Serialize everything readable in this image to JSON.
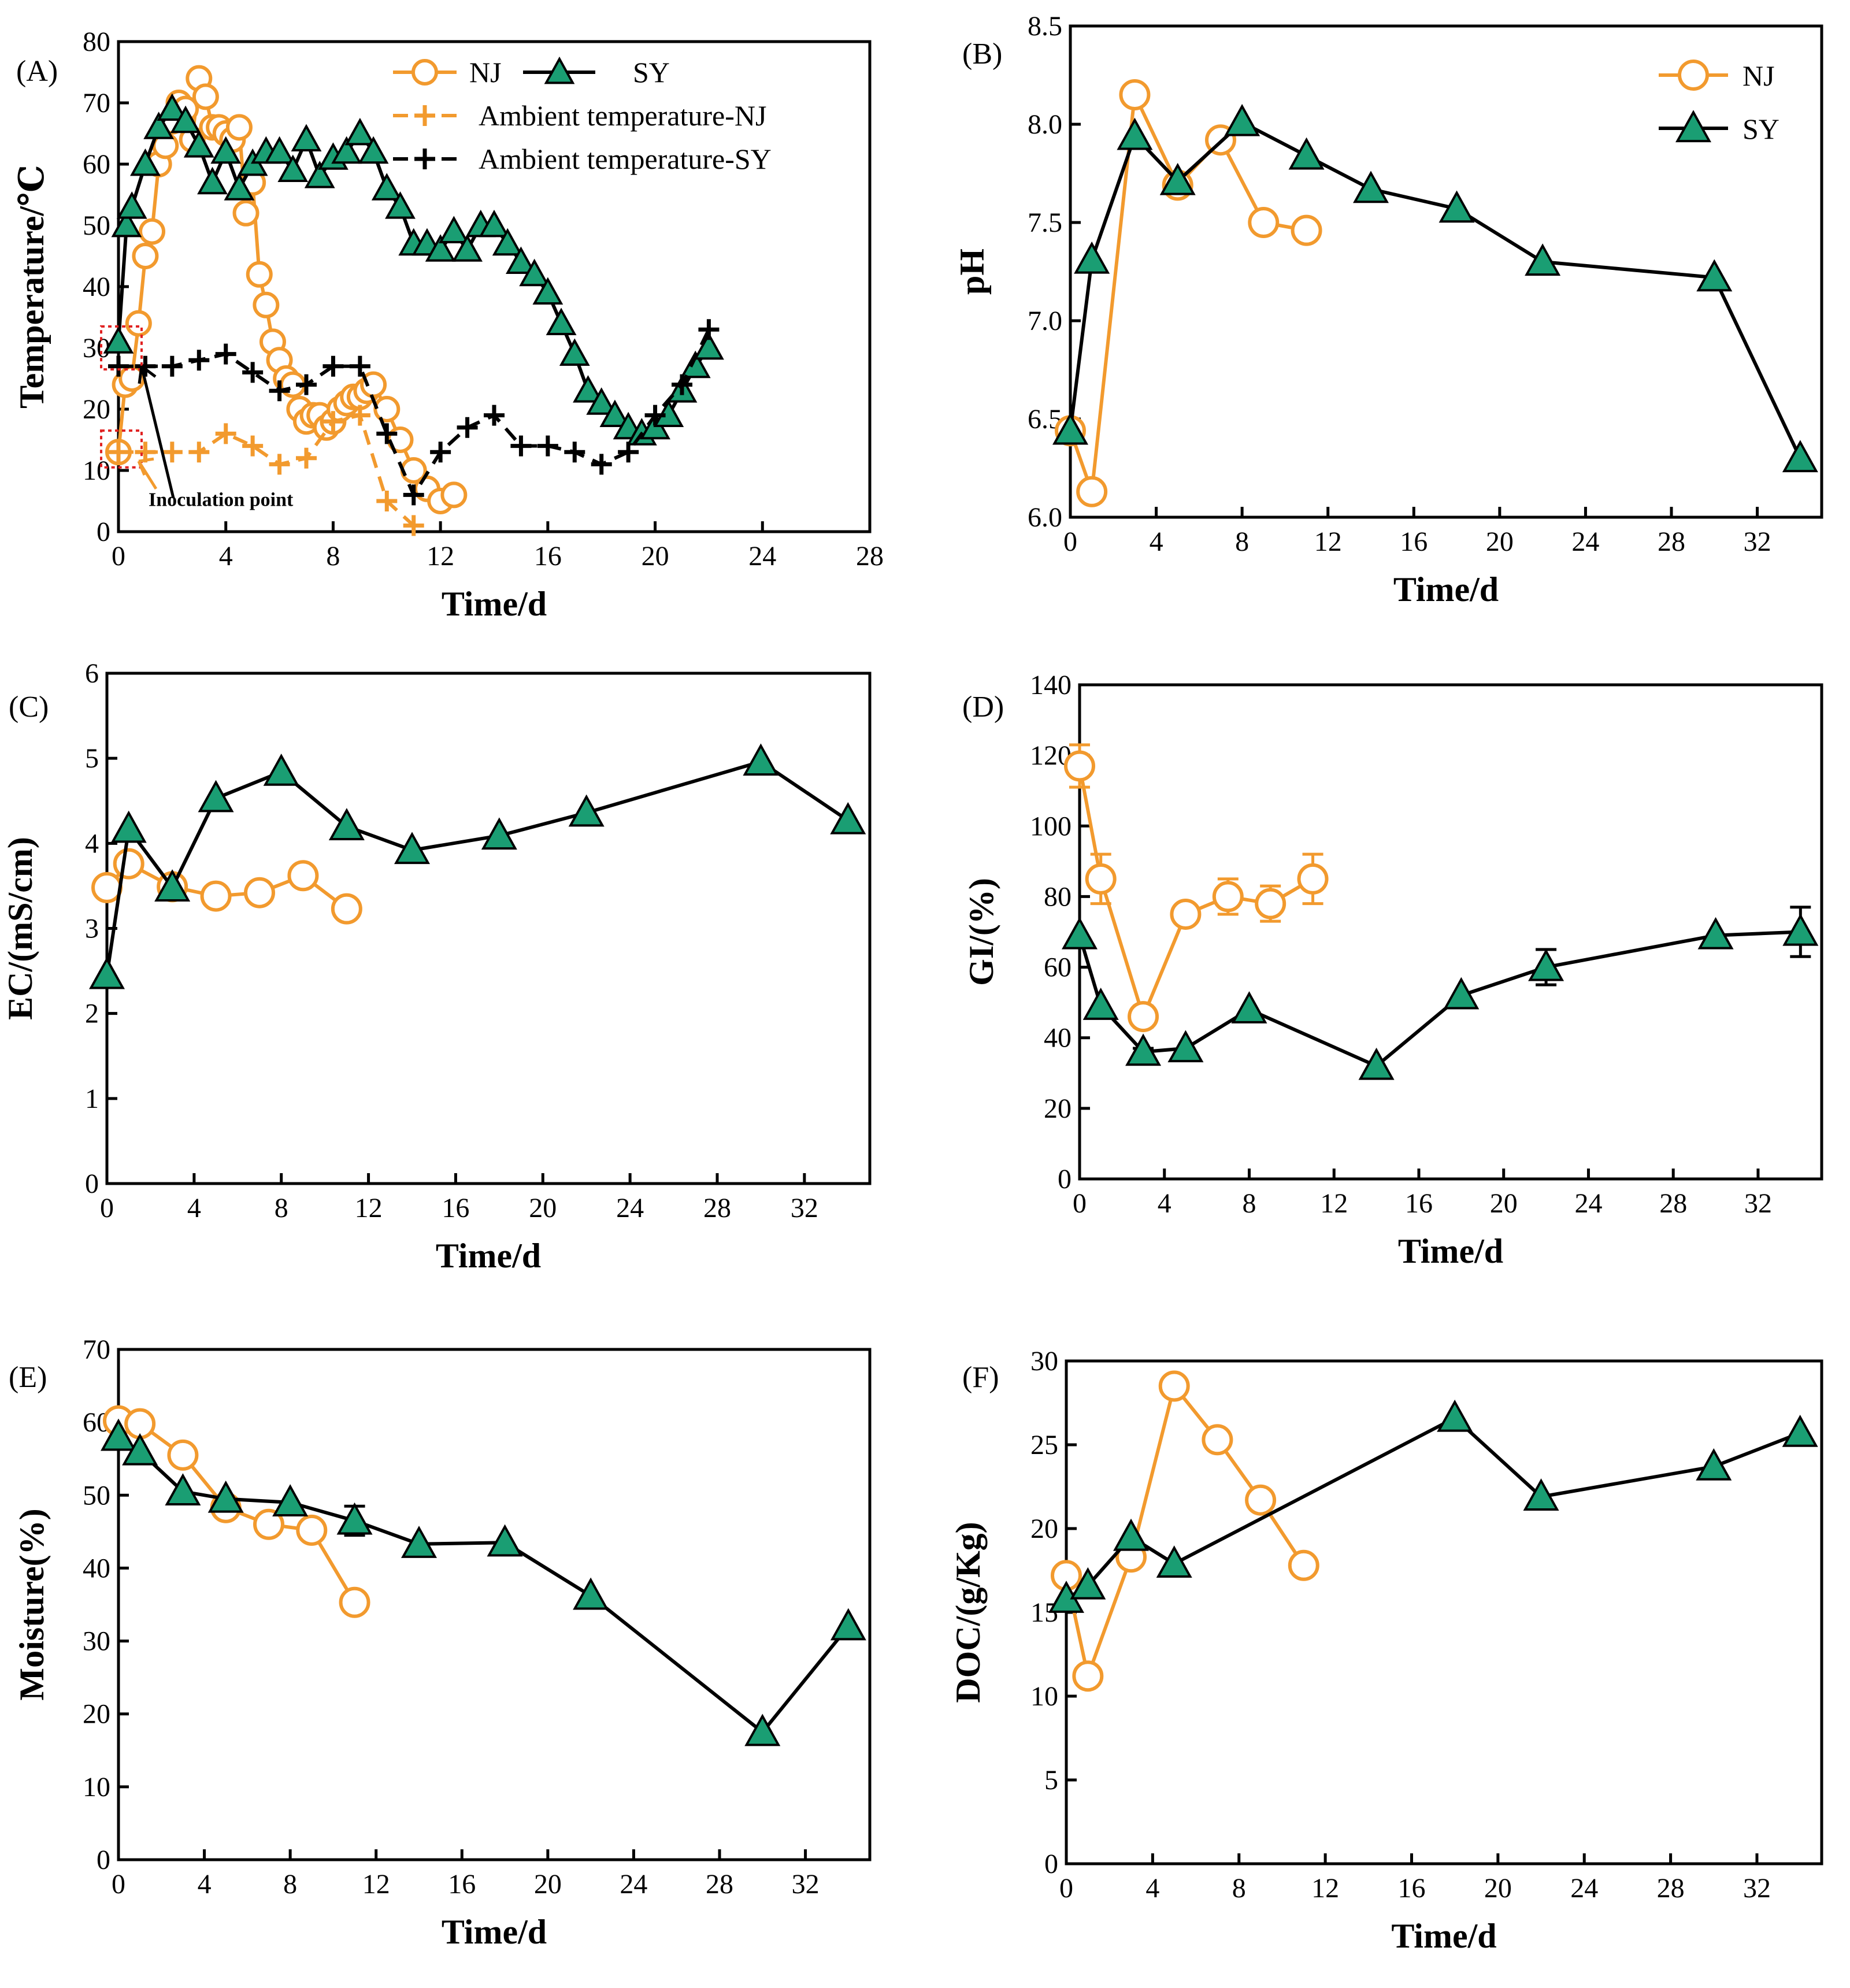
{
  "chart_data": [
    {
      "type": "line",
      "panel": "(A)",
      "xlabel": "Time/d",
      "ylabel": "Temperature/℃",
      "xlim": [
        0,
        28
      ],
      "ylim": [
        0,
        80
      ],
      "xticks": [
        0,
        4,
        8,
        12,
        16,
        20,
        24,
        28
      ],
      "yticks": [
        0,
        10,
        20,
        30,
        40,
        50,
        60,
        70,
        80
      ],
      "legend_placement": "top-right",
      "annotation": "Inoculation point",
      "series": [
        {
          "name": "NJ",
          "color": "#f29a2e",
          "marker": "circle",
          "line": "solid",
          "x": [
            0,
            0.25,
            0.5,
            0.75,
            1.0,
            1.25,
            1.5,
            1.75,
            2.0,
            2.25,
            2.5,
            2.75,
            3.0,
            3.25,
            3.5,
            3.75,
            4.0,
            4.25,
            4.5,
            4.75,
            5.0,
            5.25,
            5.5,
            5.75,
            6.0,
            6.25,
            6.5,
            6.75,
            7.0,
            7.25,
            7.5,
            7.75,
            8.0,
            8.25,
            8.5,
            8.75,
            9.0,
            9.25,
            9.5,
            10.0,
            10.5,
            11.0,
            11.5,
            12.0,
            12.5
          ],
          "y": [
            13,
            24,
            25,
            34,
            45,
            49,
            60,
            63,
            67,
            70,
            69,
            64,
            74,
            71,
            66,
            66,
            65,
            64,
            66,
            52,
            57,
            42,
            37,
            31,
            28,
            25,
            24,
            20,
            18,
            19,
            19,
            17,
            18,
            20,
            21,
            22,
            22,
            23,
            24,
            20,
            15,
            10,
            7,
            5,
            6
          ]
        },
        {
          "name": "SY",
          "color": "#1a9e73",
          "marker": "triangle",
          "line": "solid",
          "x": [
            0,
            0.3,
            0.5,
            1.0,
            1.5,
            2.0,
            2.5,
            3.0,
            3.5,
            4.0,
            4.5,
            5.0,
            5.5,
            6.0,
            6.5,
            7.0,
            7.5,
            8.0,
            8.5,
            9.0,
            9.5,
            10.0,
            10.5,
            11.0,
            11.5,
            12.0,
            12.5,
            13.0,
            13.5,
            14.0,
            14.5,
            15.0,
            15.5,
            16.0,
            16.5,
            17.0,
            17.5,
            18.0,
            18.5,
            19.0,
            19.5,
            20.0,
            20.5,
            21.0,
            21.5,
            22.0
          ],
          "y": [
            31,
            50,
            53,
            60,
            66,
            69,
            67,
            63,
            57,
            62,
            56,
            60,
            62,
            62,
            59,
            64,
            58,
            61,
            62,
            65,
            62,
            56,
            53,
            47,
            47,
            46,
            49,
            46,
            50,
            50,
            47,
            44,
            42,
            39,
            34,
            29,
            23,
            21,
            19,
            17,
            16,
            17,
            19,
            23,
            27,
            30
          ]
        },
        {
          "name": "Ambient temperature-NJ",
          "color": "#f29a2e",
          "marker": "plus",
          "line": "dashed",
          "x": [
            0,
            1,
            2,
            3,
            4,
            5,
            6,
            7,
            8,
            9,
            10,
            11
          ],
          "y": [
            13,
            13,
            13,
            13,
            16,
            14,
            11,
            12,
            18,
            19,
            5,
            1
          ]
        },
        {
          "name": "Ambient temperature-SY",
          "color": "#000000",
          "marker": "plus",
          "line": "dashed",
          "x": [
            0,
            1,
            2,
            3,
            4,
            5,
            6,
            7,
            8,
            9,
            10,
            11,
            12,
            13,
            14,
            15,
            16,
            17,
            18,
            19,
            20,
            21,
            22
          ],
          "y": [
            27,
            27,
            27,
            28,
            29,
            26,
            23,
            24,
            27,
            27,
            16,
            6,
            13,
            17,
            19,
            14,
            14,
            13,
            11,
            13,
            19,
            24,
            33
          ]
        }
      ]
    },
    {
      "type": "line",
      "panel": "(B)",
      "xlabel": "Time/d",
      "ylabel": "pH",
      "xlim": [
        0,
        35
      ],
      "ylim": [
        6.0,
        8.5
      ],
      "xticks": [
        0,
        4,
        8,
        12,
        16,
        20,
        24,
        28,
        32
      ],
      "yticks": [
        "6.0",
        "6.5",
        "7.0",
        "7.5",
        "8.0",
        "8.5"
      ],
      "legend_placement": "top-right",
      "series": [
        {
          "name": "NJ",
          "color": "#f29a2e",
          "marker": "circle",
          "x": [
            0,
            1,
            3,
            5,
            7,
            9,
            11
          ],
          "y": [
            6.44,
            6.13,
            8.15,
            7.69,
            7.92,
            7.5,
            7.46
          ]
        },
        {
          "name": "SY",
          "color": "#1a9e73",
          "marker": "triangle",
          "x": [
            0,
            1,
            3,
            5,
            8,
            11,
            14,
            18,
            22,
            30,
            34
          ],
          "y": [
            6.44,
            7.31,
            7.94,
            7.71,
            8.01,
            7.84,
            7.67,
            7.57,
            7.3,
            7.22,
            6.3
          ]
        }
      ]
    },
    {
      "type": "line",
      "panel": "(C)",
      "xlabel": "Time/d",
      "ylabel": "EC/(mS/cm)",
      "xlim": [
        0,
        35
      ],
      "ylim": [
        0,
        6
      ],
      "xticks": [
        0,
        4,
        8,
        12,
        16,
        20,
        24,
        28,
        32
      ],
      "yticks": [
        0,
        1,
        2,
        3,
        4,
        5,
        6
      ],
      "series": [
        {
          "name": "NJ",
          "color": "#f29a2e",
          "marker": "circle",
          "x": [
            0,
            1,
            3,
            5,
            7,
            9,
            11
          ],
          "y": [
            3.48,
            3.76,
            3.49,
            3.38,
            3.42,
            3.62,
            3.23
          ]
        },
        {
          "name": "SY",
          "color": "#1a9e73",
          "marker": "triangle",
          "x": [
            0,
            1,
            3,
            5,
            8,
            11,
            14,
            18,
            22,
            30,
            34
          ],
          "y": [
            2.45,
            4.17,
            3.48,
            4.53,
            4.84,
            4.2,
            3.92,
            4.09,
            4.36,
            4.96,
            4.27
          ]
        }
      ]
    },
    {
      "type": "line",
      "panel": "(D)",
      "xlabel": "Time/d",
      "ylabel": "GI/(%)",
      "xlim": [
        0,
        35
      ],
      "ylim": [
        0,
        140
      ],
      "xticks": [
        0,
        4,
        8,
        12,
        16,
        20,
        24,
        28,
        32
      ],
      "yticks": [
        0,
        20,
        40,
        60,
        80,
        100,
        120,
        140
      ],
      "series": [
        {
          "name": "NJ",
          "color": "#f29a2e",
          "marker": "circle",
          "x": [
            0,
            1,
            3,
            5,
            7,
            9,
            11
          ],
          "y": [
            117,
            85,
            46,
            75,
            80,
            78,
            85
          ],
          "err": [
            6,
            7,
            3,
            2,
            5,
            5,
            7
          ]
        },
        {
          "name": "SY",
          "color": "#1a9e73",
          "marker": "triangle",
          "x": [
            0,
            1,
            3,
            5,
            8,
            14,
            18,
            22,
            30,
            34
          ],
          "y": [
            69,
            49,
            36,
            37,
            48,
            32,
            52,
            60,
            69,
            70
          ],
          "err": [
            0,
            0,
            1,
            0,
            0,
            0,
            0,
            5,
            0,
            7
          ]
        }
      ]
    },
    {
      "type": "line",
      "panel": "(E)",
      "xlabel": "Time/d",
      "ylabel": "Moisture(%)",
      "xlim": [
        0,
        35
      ],
      "ylim": [
        0,
        70
      ],
      "xticks": [
        0,
        4,
        8,
        12,
        16,
        20,
        24,
        28,
        32
      ],
      "yticks": [
        0,
        10,
        20,
        30,
        40,
        50,
        60,
        70
      ],
      "series": [
        {
          "name": "NJ",
          "color": "#f29a2e",
          "marker": "circle",
          "x": [
            0,
            1,
            3,
            5,
            7,
            9,
            11
          ],
          "y": [
            60.2,
            59.8,
            55.5,
            48.3,
            46.0,
            45.2,
            35.3
          ]
        },
        {
          "name": "SY",
          "color": "#1a9e73",
          "marker": "triangle",
          "x": [
            0,
            1,
            3,
            5,
            8,
            11,
            14,
            18,
            22,
            30,
            34
          ],
          "y": [
            58.0,
            56.0,
            50.5,
            49.5,
            49.0,
            46.5,
            43.3,
            43.5,
            36.2,
            17.5,
            32.0
          ],
          "err": [
            0,
            0,
            0,
            0,
            0,
            2,
            0,
            0,
            0,
            0,
            0
          ]
        }
      ]
    },
    {
      "type": "line",
      "panel": "(F)",
      "xlabel": "Time/d",
      "ylabel": "DOC/(g/Kg)",
      "xlim": [
        0,
        35
      ],
      "ylim": [
        0,
        30
      ],
      "xticks": [
        0,
        4,
        8,
        12,
        16,
        20,
        24,
        28,
        32
      ],
      "yticks": [
        0,
        5,
        10,
        15,
        20,
        25,
        30
      ],
      "series": [
        {
          "name": "NJ",
          "color": "#f29a2e",
          "marker": "circle",
          "x": [
            0,
            1,
            3,
            5,
            7,
            9,
            11
          ],
          "y": [
            17.2,
            11.2,
            18.3,
            28.5,
            25.3,
            21.7,
            17.8
          ]
        },
        {
          "name": "SY",
          "color": "#1a9e73",
          "marker": "triangle",
          "x": [
            0,
            1,
            3,
            5,
            18,
            22,
            30,
            34
          ],
          "y": [
            15.8,
            16.6,
            19.5,
            17.9,
            26.6,
            21.9,
            23.7,
            25.7
          ]
        }
      ]
    }
  ]
}
